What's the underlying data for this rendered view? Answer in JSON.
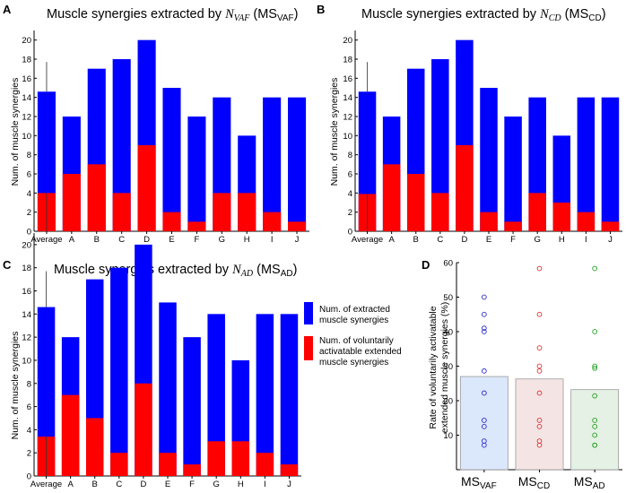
{
  "colors": {
    "extracted": "#0000ff",
    "voluntary": "#ff0000",
    "axis": "#000000",
    "vaf_fill": "#dbe7fa",
    "cd_fill": "#f5e4e4",
    "ad_fill": "#e4f1e4",
    "vaf_marker": "#2a2acf",
    "cd_marker": "#e03030",
    "ad_marker": "#1e9e1e"
  },
  "legend": {
    "extracted_line1": "Num. of extracted",
    "extracted_line2": "muscle synergies",
    "voluntary_line1": "Num. of voluntarily",
    "voluntary_line2": "activatable extended",
    "voluntary_line3": "muscle synergies"
  },
  "chart_data": [
    {
      "type": "bar",
      "panel": "A",
      "title_prefix": "Muscle synergies extracted by ",
      "title_italic_main": "N",
      "title_italic_sub": "VAF",
      "title_ms": "MS",
      "title_ms_sub": "VAF",
      "ylabel": "Num. of muscle synergies",
      "ylim": [
        0,
        21
      ],
      "yticks": [
        0,
        2,
        4,
        6,
        8,
        10,
        12,
        14,
        16,
        18,
        20
      ],
      "categories": [
        "Average",
        "A",
        "B",
        "C",
        "D",
        "E",
        "F",
        "G",
        "H",
        "I",
        "J"
      ],
      "series": [
        {
          "name": "Num. of extracted muscle synergies",
          "values": [
            14.6,
            12,
            17,
            18,
            20,
            15,
            12,
            14,
            10,
            14,
            14
          ]
        },
        {
          "name": "Num. of voluntarily activatable extended muscle synergies",
          "values": [
            4,
            6,
            7,
            4,
            9,
            2,
            1,
            4,
            4,
            2,
            1
          ]
        }
      ],
      "error_bar_average_upper": 17.7
    },
    {
      "type": "bar",
      "panel": "B",
      "title_prefix": "Muscle synergies extracted by ",
      "title_italic_main": "N",
      "title_italic_sub": "CD",
      "title_ms": "MS",
      "title_ms_sub": "CD",
      "ylabel": "Num. of muscle synergies",
      "ylim": [
        0,
        21
      ],
      "yticks": [
        0,
        2,
        4,
        6,
        8,
        10,
        12,
        14,
        16,
        18,
        20
      ],
      "categories": [
        "Average",
        "A",
        "B",
        "C",
        "D",
        "E",
        "F",
        "G",
        "H",
        "I",
        "J"
      ],
      "series": [
        {
          "name": "Num. of extracted muscle synergies",
          "values": [
            14.6,
            12,
            17,
            18,
            20,
            15,
            12,
            14,
            10,
            14,
            14
          ]
        },
        {
          "name": "Num. of voluntarily activatable extended muscle synergies",
          "values": [
            3.9,
            7,
            6,
            4,
            9,
            2,
            1,
            4,
            3,
            2,
            1
          ]
        }
      ],
      "error_bar_average_upper": 17.7
    },
    {
      "type": "bar",
      "panel": "C",
      "title_prefix": "Muscle synergies extracted by ",
      "title_italic_main": "N",
      "title_italic_sub": "AD",
      "title_ms": "MS",
      "title_ms_sub": "AD",
      "ylabel": "Num. of muscle synergies",
      "ylim": [
        0,
        21
      ],
      "yticks": [
        0,
        2,
        4,
        6,
        8,
        10,
        12,
        14,
        16,
        18,
        20
      ],
      "categories": [
        "Average",
        "A",
        "B",
        "C",
        "D",
        "E",
        "F",
        "G",
        "H",
        "I",
        "J"
      ],
      "series": [
        {
          "name": "Num. of extracted muscle synergies",
          "values": [
            14.6,
            12,
            17,
            18,
            20,
            15,
            12,
            14,
            10,
            14,
            14
          ]
        },
        {
          "name": "Num. of voluntarily activatable extended muscle synergies",
          "values": [
            3.4,
            7,
            5,
            2,
            8,
            2,
            1,
            3,
            3,
            2,
            1
          ]
        }
      ],
      "error_bar_average_upper": 17.7
    },
    {
      "type": "bar",
      "panel": "D",
      "ylabel_line1": "Rate of voluntarily activatable",
      "ylabel_line2": "extended muscle synergies (%)",
      "ylim": [
        0,
        60
      ],
      "yticks": [
        10,
        20,
        30,
        40,
        50,
        60
      ],
      "categories": [
        {
          "main": "MS",
          "sub": "VAF"
        },
        {
          "main": "MS",
          "sub": "CD"
        },
        {
          "main": "MS",
          "sub": "AD"
        }
      ],
      "values": [
        27,
        26.3,
        23.2
      ],
      "points": [
        [
          50,
          45,
          41,
          40,
          28.6,
          22.2,
          14.3,
          12.5,
          8.3,
          7.1
        ],
        [
          58.3,
          45,
          35.3,
          30,
          28.6,
          22.2,
          14.3,
          12.5,
          8.3,
          7.1
        ],
        [
          58.3,
          40,
          30,
          29.4,
          21.4,
          14.3,
          12.5,
          10,
          7.1,
          7.1
        ]
      ]
    }
  ]
}
